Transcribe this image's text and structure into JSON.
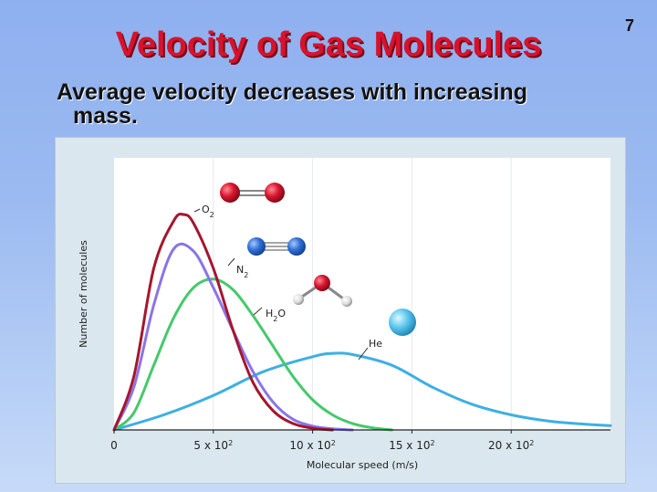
{
  "slide": {
    "number": "7",
    "title": "Velocity of Gas Molecules",
    "subtitle_line1": "Average velocity decreases with increasing",
    "subtitle_line2": "mass."
  },
  "chart_data": {
    "type": "line",
    "title": "",
    "xlabel": "Molecular speed (m/s)",
    "ylabel": "Number of molecules",
    "xlim": [
      0,
      2500
    ],
    "ylim": [
      0,
      1
    ],
    "x_ticks": [
      {
        "value": 0,
        "base": "0",
        "exp": ""
      },
      {
        "value": 500,
        "base": "5 x 10",
        "exp": "2"
      },
      {
        "value": 1000,
        "base": "10 x 10",
        "exp": "2"
      },
      {
        "value": 1500,
        "base": "15 x 10",
        "exp": "2"
      },
      {
        "value": 2000,
        "base": "20 x 10",
        "exp": "2"
      }
    ],
    "grid": "vertical",
    "series": [
      {
        "name": "O2",
        "label_main": "O",
        "label_sub": "2",
        "color": "#a5162e",
        "icon": "oxygen-molecule-icon",
        "x": [
          0,
          100,
          200,
          300,
          350,
          400,
          500,
          600,
          700,
          800,
          900,
          1000,
          1100
        ],
        "y": [
          0,
          0.25,
          0.75,
          0.97,
          1.0,
          0.96,
          0.75,
          0.46,
          0.22,
          0.09,
          0.03,
          0.008,
          0
        ]
      },
      {
        "name": "N2",
        "label_main": "N",
        "label_sub": "2",
        "color": "#8a75e6",
        "icon": "nitrogen-molecule-icon",
        "x": [
          0,
          100,
          200,
          300,
          400,
          500,
          600,
          700,
          800,
          900,
          1000,
          1100,
          1200
        ],
        "y": [
          0,
          0.2,
          0.58,
          0.84,
          0.83,
          0.66,
          0.46,
          0.27,
          0.13,
          0.05,
          0.018,
          0.005,
          0
        ]
      },
      {
        "name": "H2O",
        "label_main": "H",
        "label_sub": "2",
        "label_tail": "O",
        "color": "#44c96b",
        "icon": "water-molecule-icon",
        "x": [
          0,
          100,
          200,
          300,
          400,
          500,
          600,
          700,
          800,
          900,
          1000,
          1100,
          1200,
          1300,
          1400
        ],
        "y": [
          0,
          0.08,
          0.3,
          0.52,
          0.66,
          0.7,
          0.65,
          0.53,
          0.39,
          0.25,
          0.14,
          0.07,
          0.03,
          0.01,
          0
        ]
      },
      {
        "name": "He",
        "label_main": "He",
        "label_sub": "",
        "color": "#3eafe3",
        "icon": "helium-atom-icon",
        "x": [
          0,
          250,
          500,
          750,
          1000,
          1100,
          1200,
          1400,
          1600,
          1800,
          2000,
          2200,
          2400,
          2500
        ],
        "y": [
          0,
          0.07,
          0.16,
          0.27,
          0.34,
          0.355,
          0.35,
          0.3,
          0.2,
          0.12,
          0.07,
          0.04,
          0.025,
          0.02
        ]
      }
    ]
  }
}
